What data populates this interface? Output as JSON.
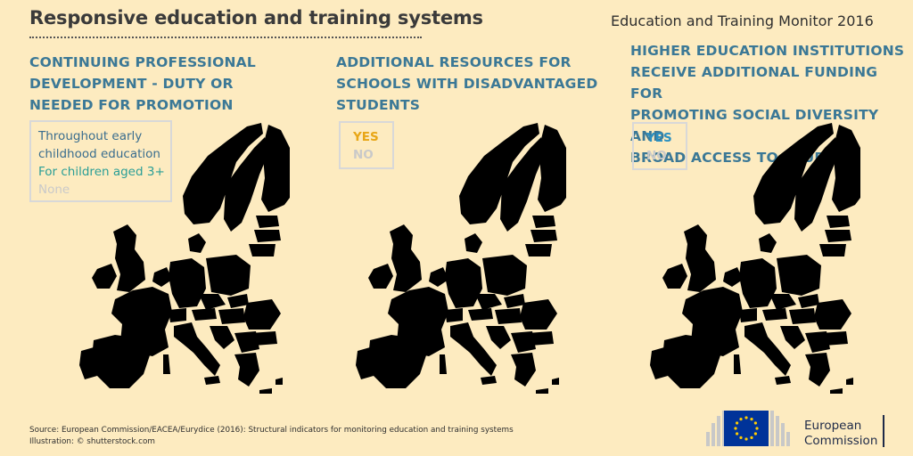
{
  "header": {
    "title": "Responsive education and training systems",
    "monitor": "Education and Training Monitor 2016"
  },
  "panels": [
    {
      "heading_lines": [
        "CONTINUING PROFESSIONAL",
        "DEVELOPMENT - DUTY OR",
        "NEEDED FOR PROMOTION"
      ],
      "legend": [
        {
          "label": "Throughout early",
          "color": "#3a6d8e"
        },
        {
          "label": "childhood education",
          "color": "#3a6d8e"
        },
        {
          "label": "For children aged 3+",
          "color": "#2a9e96"
        },
        {
          "label": "None",
          "color": "#c9c9c9"
        }
      ],
      "map_colors": {
        "primary": "#41718f",
        "secondary": "#2aa097",
        "none": "#c7c7c7"
      }
    },
    {
      "heading_lines": [
        "ADDITIONAL RESOURCES FOR",
        "SCHOOLS WITH DISADVANTAGED",
        "STUDENTS"
      ],
      "legend": [
        {
          "label": "YES",
          "color": "#e8a616"
        },
        {
          "label": "NO",
          "color": "#c9c9c9"
        }
      ],
      "map_colors": {
        "primary": "#e6a817",
        "secondary": "#e6a817",
        "none": "#c7c7c7"
      }
    },
    {
      "heading_lines": [
        "HIGHER EDUCATION INSTITUTIONS",
        "RECEIVE ADDITIONAL FUNDING FOR",
        "PROMOTING SOCIAL DIVERSITY AND",
        "BROAD ACCESS TO STUDIES"
      ],
      "legend": [
        {
          "label": "YES",
          "color": "#2a8fc0"
        },
        {
          "label": "NO",
          "color": "#c9c9c9"
        }
      ],
      "map_colors": {
        "primary": "#3a9bcf",
        "secondary": "#3a9bcf",
        "none": "#c7c7c7"
      }
    }
  ],
  "footer": {
    "source": "Source: European Commission/EACEA/Eurydice (2016): Structural indicators for monitoring education and training systems",
    "illustration": "Illustration: © shutterstock.com"
  },
  "logo": {
    "line1": "European",
    "line2": "Commission"
  }
}
